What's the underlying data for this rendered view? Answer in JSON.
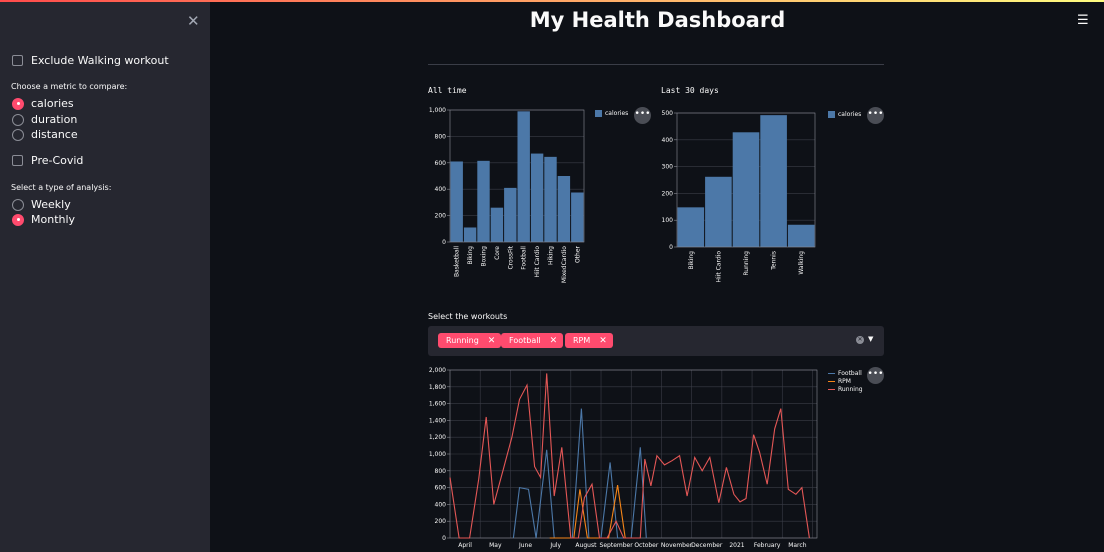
{
  "page": {
    "title": "My Health Dashboard"
  },
  "sidebar": {
    "close_icon": "close-icon",
    "exclude_walking_label": "Exclude Walking workout",
    "exclude_walking_checked": false,
    "metric_label": "Choose a metric to compare:",
    "metric_options": [
      "calories",
      "duration",
      "distance"
    ],
    "metric_selected": "calories",
    "pre_covid_label": "Pre-Covid",
    "pre_covid_checked": false,
    "analysis_label": "Select a type of analysis:",
    "analysis_options": [
      "Weekly",
      "Monthly"
    ],
    "analysis_selected": "Monthly"
  },
  "header": {
    "menu_icon": "hamburger-icon",
    "more_icon": "ellipsis-icon"
  },
  "workouts": {
    "label": "Select the workouts",
    "selected": [
      "Running",
      "Football",
      "RPM"
    ],
    "remove_icon": "close-icon",
    "clear_icon": "clear-icon",
    "dropdown_icon": "chevron-down-icon"
  },
  "colors": {
    "bar": "#4c78a8",
    "football": "#4c78a8",
    "rpm": "#f58518",
    "running": "#e45756",
    "accent": "#ff4b6e"
  },
  "chart_data": [
    {
      "type": "bar",
      "title": "All time",
      "categories": [
        "Basketball",
        "Biking",
        "Boxing",
        "Core",
        "CrossFit",
        "Football",
        "Hiit Cardio",
        "Hiking",
        "MixedCardio",
        "Other"
      ],
      "series": [
        {
          "name": "calories",
          "values": [
            610,
            110,
            615,
            260,
            410,
            990,
            670,
            645,
            500,
            375
          ]
        }
      ],
      "ylim": [
        0,
        1000
      ],
      "yticks": [
        0,
        200,
        400,
        600,
        800,
        "1,000"
      ],
      "legend": "right"
    },
    {
      "type": "bar",
      "title": "Last 30 days",
      "categories": [
        "Biking",
        "Hiit Cardio",
        "Running",
        "Tennis",
        "Walking"
      ],
      "series": [
        {
          "name": "calories",
          "values": [
            148,
            262,
            428,
            492,
            83
          ]
        }
      ],
      "ylim": [
        0,
        500
      ],
      "yticks": [
        0,
        100,
        200,
        300,
        400,
        500
      ],
      "legend": "right"
    },
    {
      "type": "line",
      "x_month_ticks": [
        "April",
        "May",
        "June",
        "July",
        "August",
        "September",
        "October",
        "November",
        "December",
        "2021",
        "February",
        "March"
      ],
      "x_range_months": [
        0,
        12.15
      ],
      "ylim": [
        0,
        2000
      ],
      "yticks": [
        0,
        200,
        400,
        600,
        800,
        "1,000",
        "1,200",
        "1,400",
        "1,600",
        "1,800",
        "2,000"
      ],
      "legend": "right",
      "series": [
        {
          "name": "Football",
          "points": [
            [
              2.1,
              0
            ],
            [
              2.3,
              600
            ],
            [
              2.6,
              580
            ],
            [
              2.85,
              0
            ],
            [
              3.2,
              1050
            ],
            [
              3.45,
              0
            ],
            [
              3.8,
              0
            ],
            [
              4.05,
              0
            ],
            [
              4.35,
              1540
            ],
            [
              4.6,
              0
            ],
            [
              5.0,
              0
            ],
            [
              5.3,
              900
            ],
            [
              5.55,
              0
            ],
            [
              6.0,
              0
            ],
            [
              6.3,
              1080
            ],
            [
              6.5,
              0
            ]
          ]
        },
        {
          "name": "RPM",
          "points": [
            [
              3.3,
              0
            ],
            [
              3.6,
              0
            ],
            [
              3.85,
              0
            ],
            [
              4.1,
              0
            ],
            [
              4.3,
              580
            ],
            [
              4.55,
              0
            ],
            [
              5.0,
              0
            ],
            [
              5.25,
              0
            ],
            [
              5.55,
              630
            ],
            [
              5.8,
              0
            ]
          ]
        },
        {
          "name": "Running",
          "points": [
            [
              0,
              720
            ],
            [
              0.3,
              0
            ],
            [
              0.65,
              0
            ],
            [
              0.95,
              700
            ],
            [
              1.2,
              1440
            ],
            [
              1.45,
              400
            ],
            [
              1.75,
              800
            ],
            [
              2.05,
              1200
            ],
            [
              2.3,
              1650
            ],
            [
              2.55,
              1820
            ],
            [
              2.8,
              850
            ],
            [
              3.0,
              720
            ],
            [
              3.2,
              1960
            ],
            [
              3.45,
              500
            ],
            [
              3.7,
              1080
            ],
            [
              4.0,
              0
            ],
            [
              4.25,
              0
            ],
            [
              4.45,
              480
            ],
            [
              4.7,
              640
            ],
            [
              4.95,
              0
            ],
            [
              5.2,
              0
            ],
            [
              5.5,
              200
            ],
            [
              5.75,
              0
            ],
            [
              6.3,
              0
            ],
            [
              6.45,
              940
            ],
            [
              6.65,
              620
            ],
            [
              6.85,
              980
            ],
            [
              7.1,
              870
            ],
            [
              7.35,
              920
            ],
            [
              7.6,
              980
            ],
            [
              7.85,
              500
            ],
            [
              8.1,
              960
            ],
            [
              8.35,
              800
            ],
            [
              8.6,
              960
            ],
            [
              8.9,
              420
            ],
            [
              9.15,
              840
            ],
            [
              9.4,
              520
            ],
            [
              9.6,
              430
            ],
            [
              9.8,
              470
            ],
            [
              10.05,
              1230
            ],
            [
              10.25,
              1020
            ],
            [
              10.5,
              640
            ],
            [
              10.75,
              1300
            ],
            [
              10.95,
              1540
            ],
            [
              11.2,
              580
            ],
            [
              11.45,
              520
            ],
            [
              11.65,
              600
            ],
            [
              11.9,
              0
            ]
          ]
        }
      ]
    }
  ]
}
